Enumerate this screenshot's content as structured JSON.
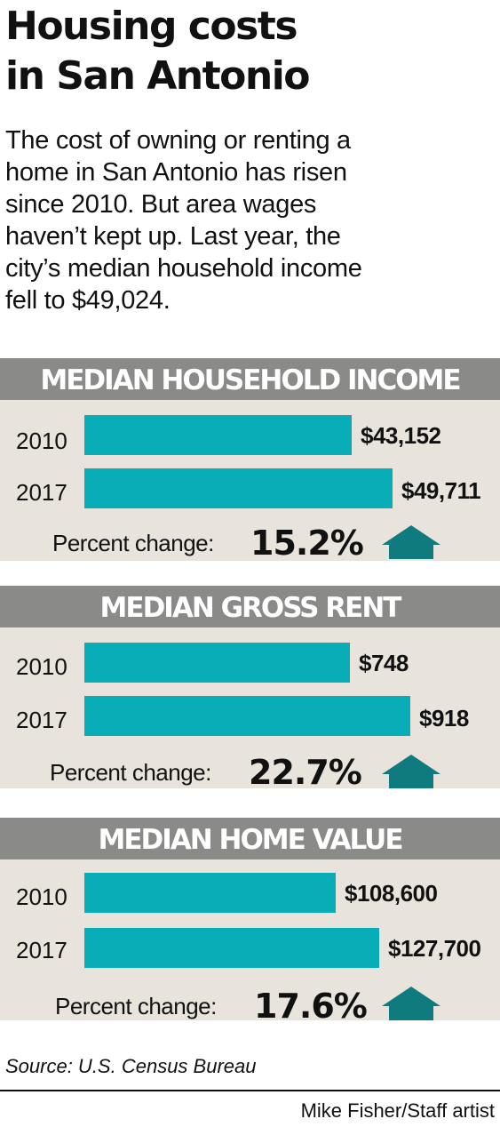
{
  "title_line1": "Housing costs",
  "title_line2": "in San Antonio",
  "intro": [
    "The cost of owning or renting a",
    "home in San Antonio has risen",
    "since 2010. But area wages",
    "haven’t kept up. Last year, the",
    "city’s median household income",
    "fell to $49,024."
  ],
  "colors": {
    "bar": "#08adb8",
    "arrow": "#0f7b7f",
    "header": "#8a8a88",
    "panel": "#e8e4dc"
  },
  "chart_data": [
    {
      "type": "bar",
      "title": "MEDIAN HOUSEHOLD INCOME",
      "categories": [
        "2010",
        "2017"
      ],
      "values": [
        43152,
        49711
      ],
      "labels": [
        "$43,152",
        "$49,711"
      ],
      "change_label": "Percent change:",
      "change_value": "15.2%",
      "change_direction": "up"
    },
    {
      "type": "bar",
      "title": "MEDIAN GROSS RENT",
      "categories": [
        "2010",
        "2017"
      ],
      "values": [
        748,
        918
      ],
      "labels": [
        "$748",
        "$918"
      ],
      "change_label": "Percent change:",
      "change_value": "22.7%",
      "change_direction": "up"
    },
    {
      "type": "bar",
      "title": "MEDIAN HOME VALUE",
      "categories": [
        "2010",
        "2017"
      ],
      "values": [
        108600,
        127700
      ],
      "labels": [
        "$108,600",
        "$127,700"
      ],
      "change_label": "Percent change:",
      "change_value": "17.6%",
      "change_direction": "up"
    }
  ],
  "source": "Source: U.S. Census Bureau",
  "credit": "Mike Fisher/Staff artist"
}
